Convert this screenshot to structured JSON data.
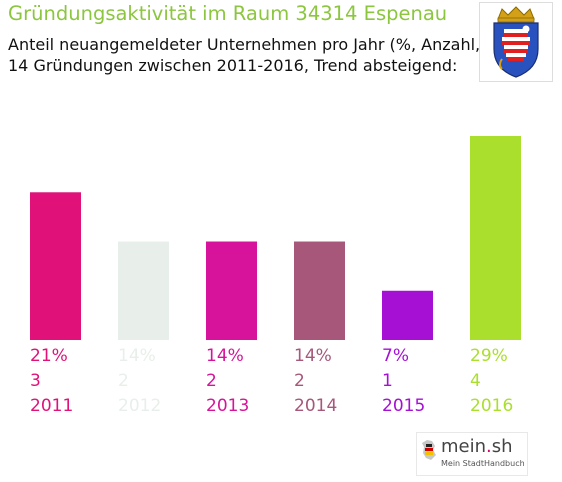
{
  "header": {
    "title": "Gründungsaktivität im Raum 34314 Espenau",
    "subtitle_line1": "Anteil neuangemeldeter Unternehmen pro Jahr (%, Anzahl, Jahr)",
    "subtitle_line2": "14 Gründungen zwischen 2011-2016, Trend absteigend:"
  },
  "colors": {
    "title": "#8cc63f",
    "bars": [
      "#e0127a",
      "#e8efea",
      "#d6139a",
      "#a6577a",
      "#a510d4",
      "#aadf2e"
    ]
  },
  "chart_data": {
    "type": "bar",
    "categories": [
      "2011",
      "2012",
      "2013",
      "2014",
      "2015",
      "2016"
    ],
    "series": [
      {
        "values": [
          21,
          14,
          14,
          14,
          7,
          29
        ]
      }
    ],
    "counts": [
      3,
      2,
      2,
      2,
      1,
      4
    ],
    "percent_labels": [
      "21%",
      "14%",
      "14%",
      "14%",
      "7%",
      "29%"
    ],
    "count_labels": [
      "3",
      "2",
      "2",
      "2",
      "1",
      "4"
    ],
    "ylim": [
      0,
      29
    ],
    "grid": false,
    "xlabel": "",
    "ylabel": ""
  },
  "crest": {
    "icon": "hessen-coat-of-arms-icon"
  },
  "logo": {
    "brand_main": "mein",
    "brand_dot": ".",
    "brand_tld": "sh",
    "tagline": "Mein StadtHandbuch",
    "icon": "germany-map-icon"
  }
}
